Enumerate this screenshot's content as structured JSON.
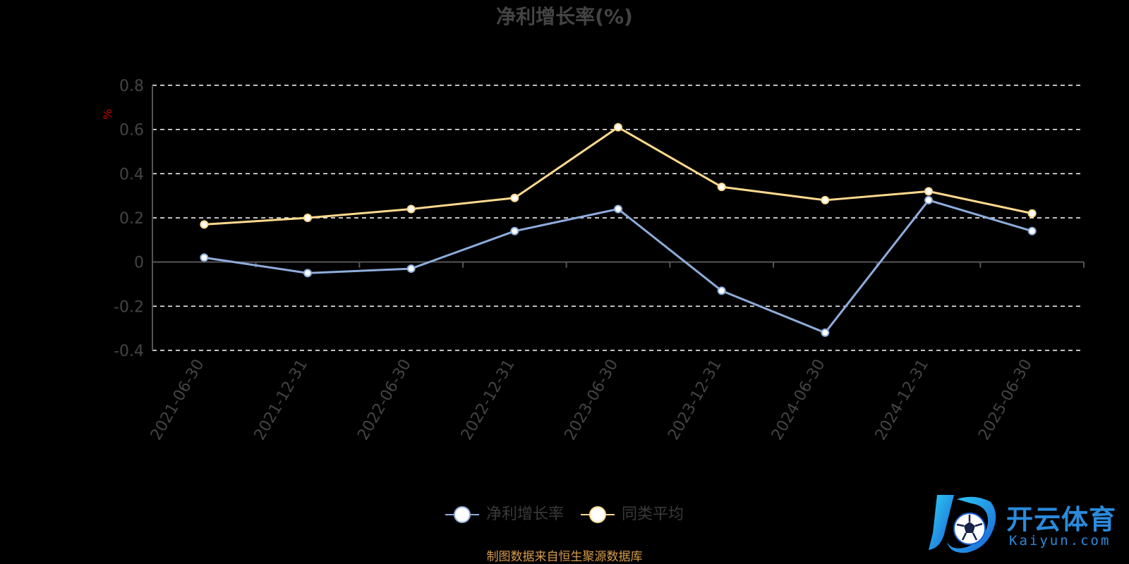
{
  "colors": {
    "background": "#000000",
    "series_main": "#8EADDC",
    "series_avg": "#FFD98E",
    "grid": "#ffffff",
    "axis_text": "#444444",
    "unit_text": "#cc0000",
    "source_text": "#d49a4a",
    "logo": "#2a8bdc"
  },
  "chart_data": {
    "type": "line",
    "title": "净利增长率(%)",
    "ylabel": "%",
    "xlabel": "",
    "categories": [
      "2021-06-30",
      "2021-12-31",
      "2022-06-30",
      "2022-12-31",
      "2023-06-30",
      "2023-12-31",
      "2024-06-30",
      "2024-12-31",
      "2025-06-30"
    ],
    "ylim": [
      -0.4,
      0.8
    ],
    "yticks": [
      -0.4,
      -0.2,
      0,
      0.2,
      0.4,
      0.6,
      0.8
    ],
    "ytick_labels": [
      "-0.4",
      "-0.2",
      "0",
      "0.2",
      "0.4",
      "0.6",
      "0.8"
    ],
    "grid": true,
    "legend_position": "bottom-center",
    "series": [
      {
        "name": "净利增长率",
        "color": "#8EADDC",
        "values": [
          0.02,
          -0.05,
          -0.03,
          0.14,
          0.24,
          -0.13,
          -0.32,
          0.28,
          0.14
        ]
      },
      {
        "name": "同类平均",
        "color": "#FFD98E",
        "values": [
          0.17,
          0.2,
          0.24,
          0.29,
          0.61,
          0.34,
          0.28,
          0.32,
          0.22
        ]
      }
    ]
  },
  "legend": {
    "items": [
      {
        "label": "净利增长率"
      },
      {
        "label": "同类平均"
      }
    ]
  },
  "source": {
    "text": "制图数据来自恒生聚源数据库"
  },
  "logo": {
    "cn": "开云体育",
    "en": "Kaiyun.com",
    "mark_icon": "kaiyun-logo-icon"
  }
}
